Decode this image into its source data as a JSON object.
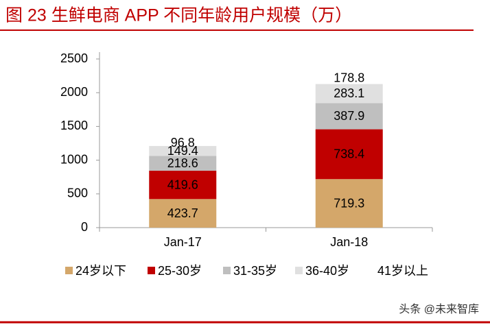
{
  "chart_data": {
    "type": "stacked_bar",
    "title": "图 23 生鲜电商 APP 不同年龄用户规模（万）",
    "categories": [
      "Jan-17",
      "Jan-18"
    ],
    "series": [
      {
        "name": "24岁以下",
        "color": "#d4a76a",
        "values": [
          423.7,
          719.3
        ]
      },
      {
        "name": "25-30岁",
        "color": "#c00000",
        "values": [
          419.6,
          738.4
        ]
      },
      {
        "name": "31-35岁",
        "color": "#bfbfbf",
        "values": [
          218.6,
          387.9
        ]
      },
      {
        "name": "36-40岁",
        "color": "#e0e0e0",
        "values": [
          149.4,
          283.1
        ]
      },
      {
        "name": "41岁以上",
        "color": "#ffffff",
        "values": [
          96.8,
          178.8
        ]
      }
    ],
    "ylim": [
      0,
      2500
    ],
    "yticks": [
      0,
      500,
      1000,
      1500,
      2000,
      2500
    ],
    "grid": false,
    "legend": "bottom",
    "watermark": "头条 @未来智库"
  }
}
